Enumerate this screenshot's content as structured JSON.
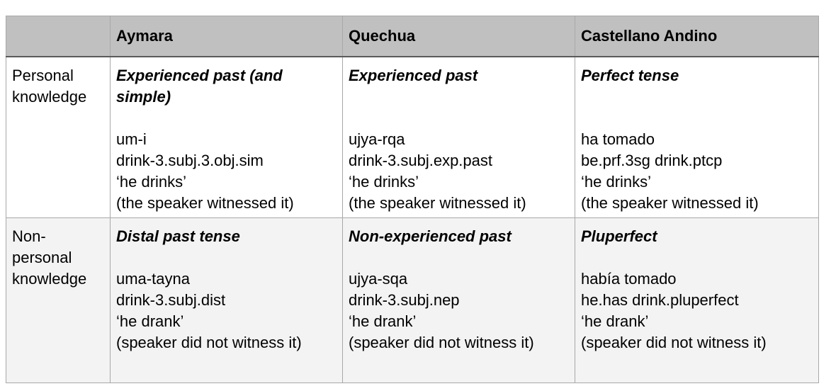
{
  "header": {
    "corner": "",
    "columns": [
      "Aymara",
      "Quechua",
      "Castellano Andino"
    ]
  },
  "rows": [
    {
      "label": "Personal knowledge",
      "cells": [
        {
          "heading": "Experienced past (and simple)",
          "lines": [
            "um-i",
            "drink-3.subj.3.obj.sim",
            "‘he drinks’",
            "(the speaker witnessed it)"
          ]
        },
        {
          "heading": "Experienced past",
          "lines": [
            "ujya-rqa",
            "drink-3.subj.exp.past",
            "‘he drinks’",
            "(the speaker witnessed it)"
          ]
        },
        {
          "heading": "Perfect tense",
          "lines": [
            "ha tomado",
            "be.prf.3sg drink.ptcp",
            "‘he drinks’",
            "(the speaker witnessed it)"
          ]
        }
      ]
    },
    {
      "label": "Non-personal knowledge",
      "cells": [
        {
          "heading": "Distal past tense",
          "lines": [
            "uma-tayna",
            "drink-3.subj.dist",
            "‘he drank’",
            "(speaker did not witness it)"
          ]
        },
        {
          "heading": "Non-experienced past",
          "lines": [
            "ujya-sqa",
            "drink-3.subj.nep",
            "‘he drank’",
            "(speaker did not witness it)"
          ]
        },
        {
          "heading": "Pluperfect",
          "lines": [
            "había tomado",
            "he.has drink.pluperfect",
            "‘he drank’",
            "(speaker did not witness it)"
          ]
        }
      ]
    }
  ]
}
